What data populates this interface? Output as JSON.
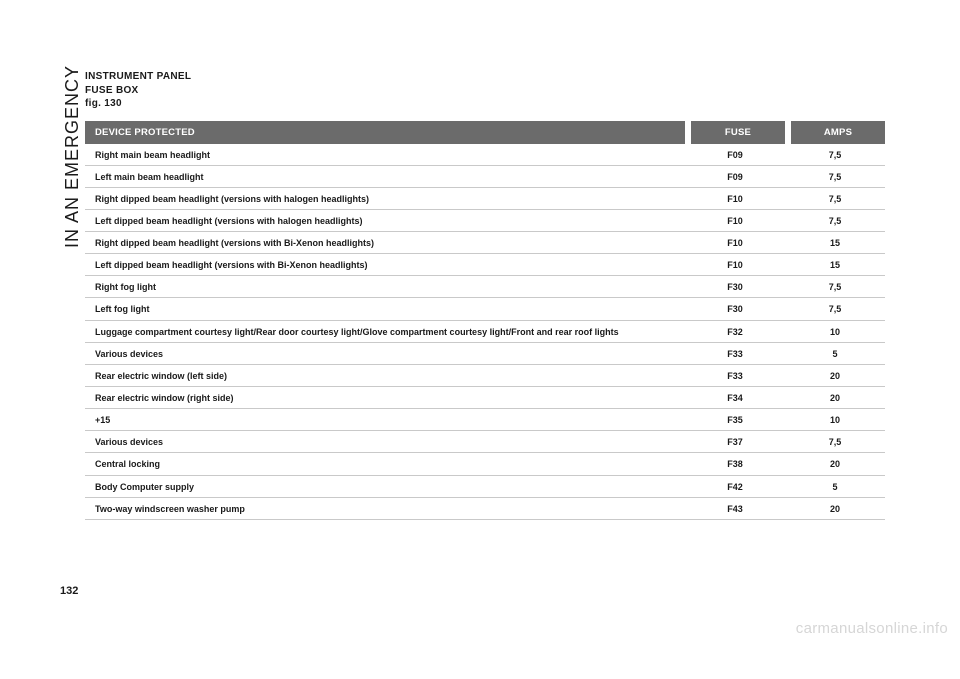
{
  "section_label": "IN AN EMERGENCY",
  "heading_line1": "INSTRUMENT PANEL",
  "heading_line2": "FUSE BOX",
  "heading_line3": "fig. 130",
  "page_number": "132",
  "watermark": "carmanualsonline.info",
  "columns": {
    "device": "DEVICE PROTECTED",
    "fuse": "FUSE",
    "amps": "AMPS"
  },
  "rows": [
    {
      "device": "Right main beam headlight",
      "fuse": "F09",
      "amps": "7,5"
    },
    {
      "device": "Left main beam headlight",
      "fuse": "F09",
      "amps": "7,5"
    },
    {
      "device": "Right dipped beam headlight (versions with halogen headlights)",
      "fuse": "F10",
      "amps": "7,5"
    },
    {
      "device": "Left dipped beam headlight (versions with halogen headlights)",
      "fuse": "F10",
      "amps": "7,5"
    },
    {
      "device": "Right dipped beam headlight (versions with Bi-Xenon headlights)",
      "fuse": "F10",
      "amps": "15"
    },
    {
      "device": "Left dipped beam headlight (versions with Bi-Xenon headlights)",
      "fuse": "F10",
      "amps": "15"
    },
    {
      "device": "Right fog light",
      "fuse": "F30",
      "amps": "7,5"
    },
    {
      "device": "Left fog light",
      "fuse": "F30",
      "amps": "7,5"
    },
    {
      "device": "Luggage compartment courtesy light/Rear door courtesy light/Glove compartment courtesy light/Front and rear roof lights",
      "fuse": "F32",
      "amps": "10"
    },
    {
      "device": "Various devices",
      "fuse": "F33",
      "amps": "5"
    },
    {
      "device": "Rear electric window (left side)",
      "fuse": "F33",
      "amps": "20"
    },
    {
      "device": "Rear electric window (right side)",
      "fuse": "F34",
      "amps": "20"
    },
    {
      "device": "+15",
      "fuse": "F35",
      "amps": "10"
    },
    {
      "device": "Various devices",
      "fuse": "F37",
      "amps": "7,5"
    },
    {
      "device": "Central locking",
      "fuse": "F38",
      "amps": "20"
    },
    {
      "device": "Body Computer supply",
      "fuse": "F42",
      "amps": "5"
    },
    {
      "device": "Two-way windscreen washer pump",
      "fuse": "F43",
      "amps": "20"
    }
  ]
}
